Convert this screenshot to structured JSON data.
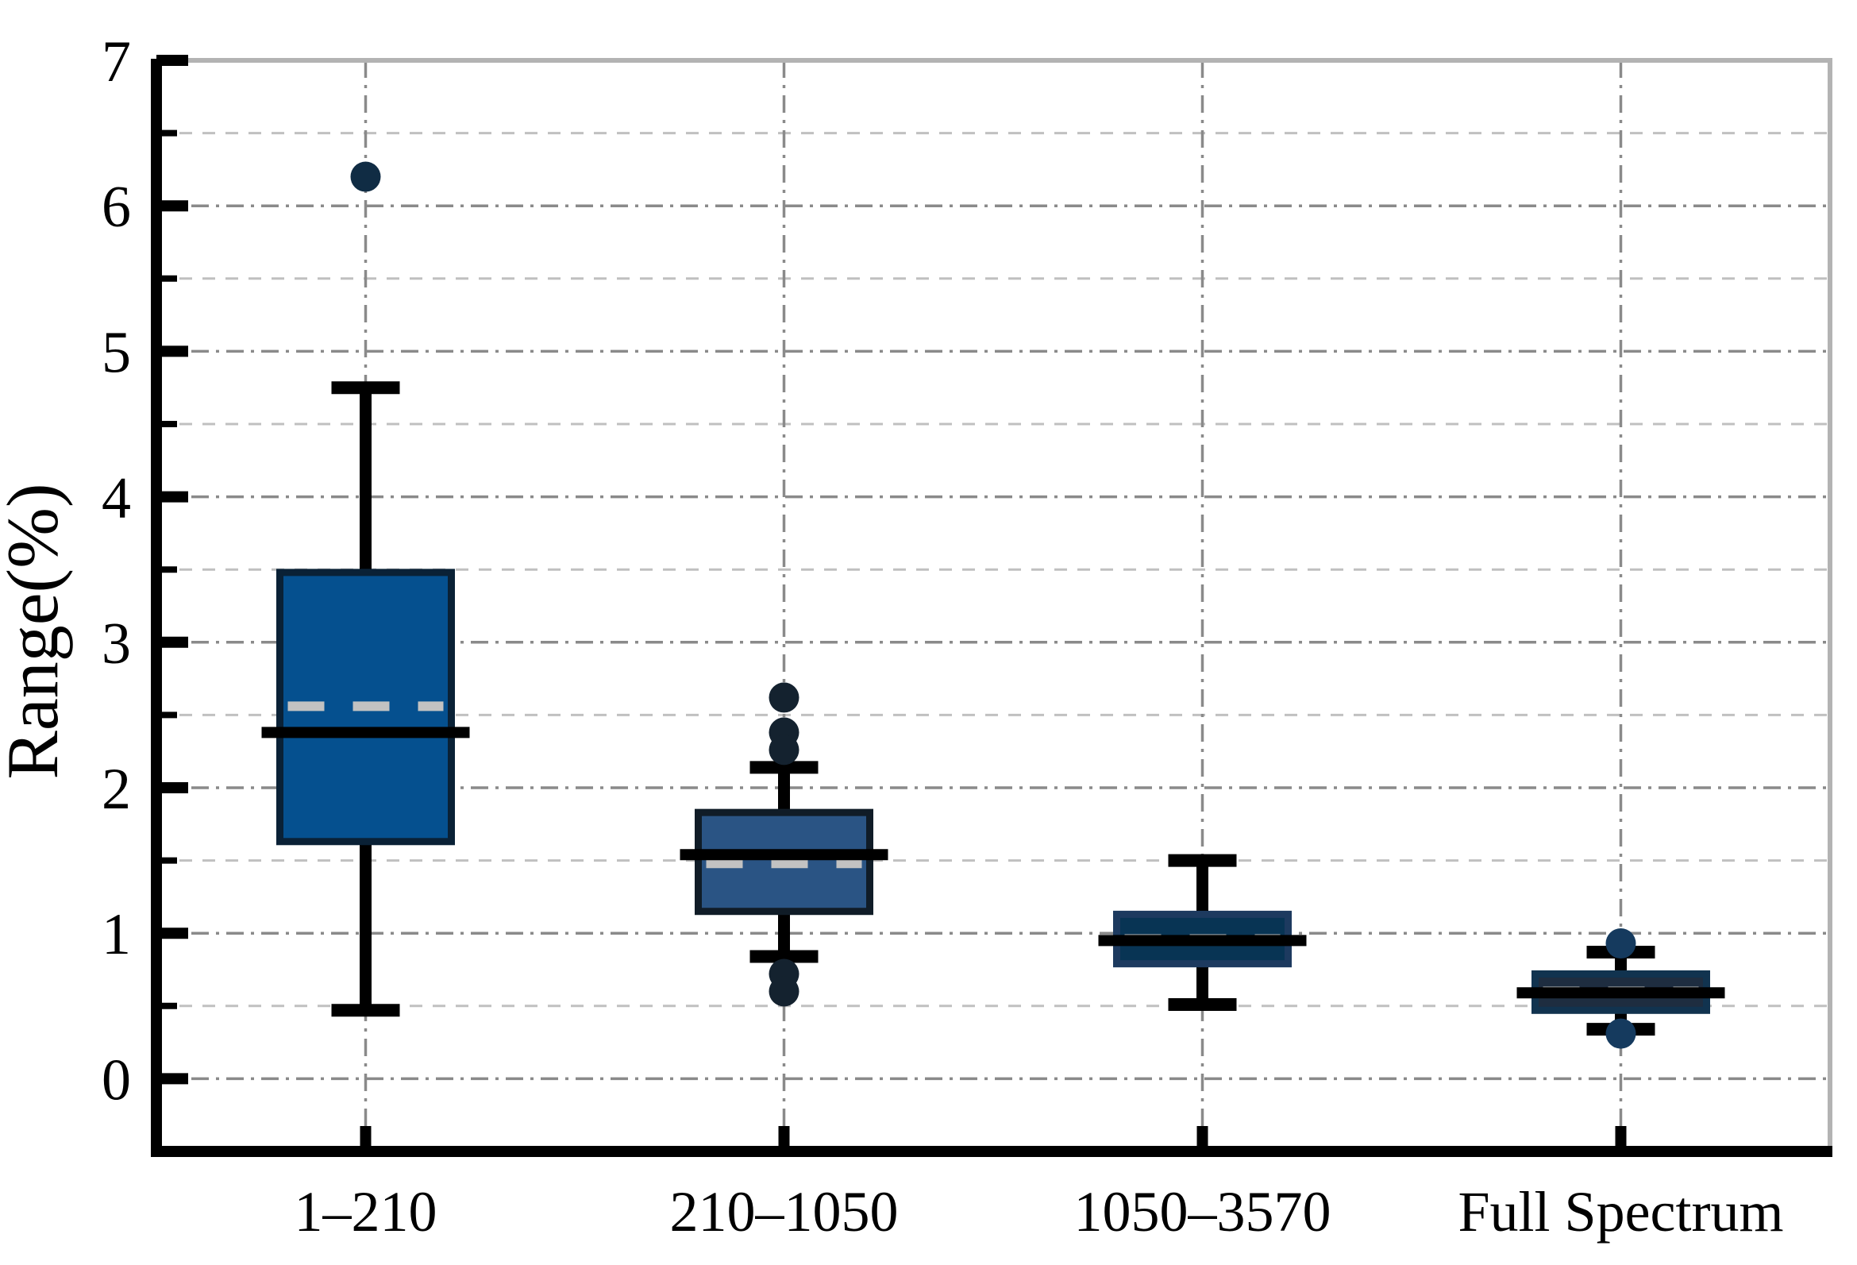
{
  "figure": {
    "ylabel": "Range(%)",
    "background": "#ffffff"
  },
  "chart_data": {
    "type": "box",
    "title": "",
    "xlabel": "",
    "ylabel": "Range(%)",
    "ylim": [
      -0.5,
      7
    ],
    "yticks_major": [
      0,
      1,
      2,
      3,
      4,
      5,
      6,
      7
    ],
    "ytick_labels": [
      "0",
      "1",
      "2",
      "3",
      "4",
      "5",
      "6",
      "7"
    ],
    "ytick_minor_step": 0.5,
    "grid": {
      "major_horizontal": "dash-dot",
      "minor_horizontal": "dashed",
      "vertical_at_categories": "dash-dot",
      "major_color": "#8a8a8a",
      "minor_color": "#c0c0c0"
    },
    "legend": "none",
    "categories": [
      "1–210",
      "210–1050",
      "1050–3570",
      "Full Spectrum"
    ],
    "series": [
      {
        "name": "1–210",
        "whisker_low": 0.47,
        "q1": 1.63,
        "median": 2.38,
        "mean": 2.56,
        "q3": 3.48,
        "whisker_high": 4.75,
        "outliers": [
          6.2
        ],
        "fill": "#05508f",
        "border": "#0a2136",
        "dot_color": "#102c44"
      },
      {
        "name": "210–1050",
        "whisker_low": 0.84,
        "q1": 1.15,
        "median": 1.54,
        "mean": 1.48,
        "q3": 1.83,
        "whisker_high": 2.14,
        "outliers": [
          2.62,
          2.38,
          2.26,
          0.72,
          0.6
        ],
        "fill": "#2a5484",
        "border": "#101c27",
        "dot_color": "#14222f"
      },
      {
        "name": "1050–3570",
        "whisker_low": 0.51,
        "q1": 0.79,
        "median": 0.95,
        "mean": 0.96,
        "q3": 1.13,
        "whisker_high": 1.5,
        "outliers": [],
        "fill": "#083454",
        "border": "#1d3a5f",
        "dot_color": "#12304d"
      },
      {
        "name": "Full Spectrum",
        "whisker_low": 0.34,
        "q1": 0.47,
        "median": 0.59,
        "mean": 0.6,
        "q3": 0.72,
        "whisker_high": 0.87,
        "outliers": [
          0.93,
          0.31
        ],
        "fill": "#1e2d40",
        "border": "#11334f",
        "dot_color": "#153a5e"
      }
    ],
    "style": {
      "median_color": "#000000",
      "mean_line_color": "#c2c2c2",
      "mean_line_style": "dashed",
      "whisker_color": "#000000",
      "axis_color": "#000000",
      "frame_color": "#b3b3b3"
    }
  }
}
